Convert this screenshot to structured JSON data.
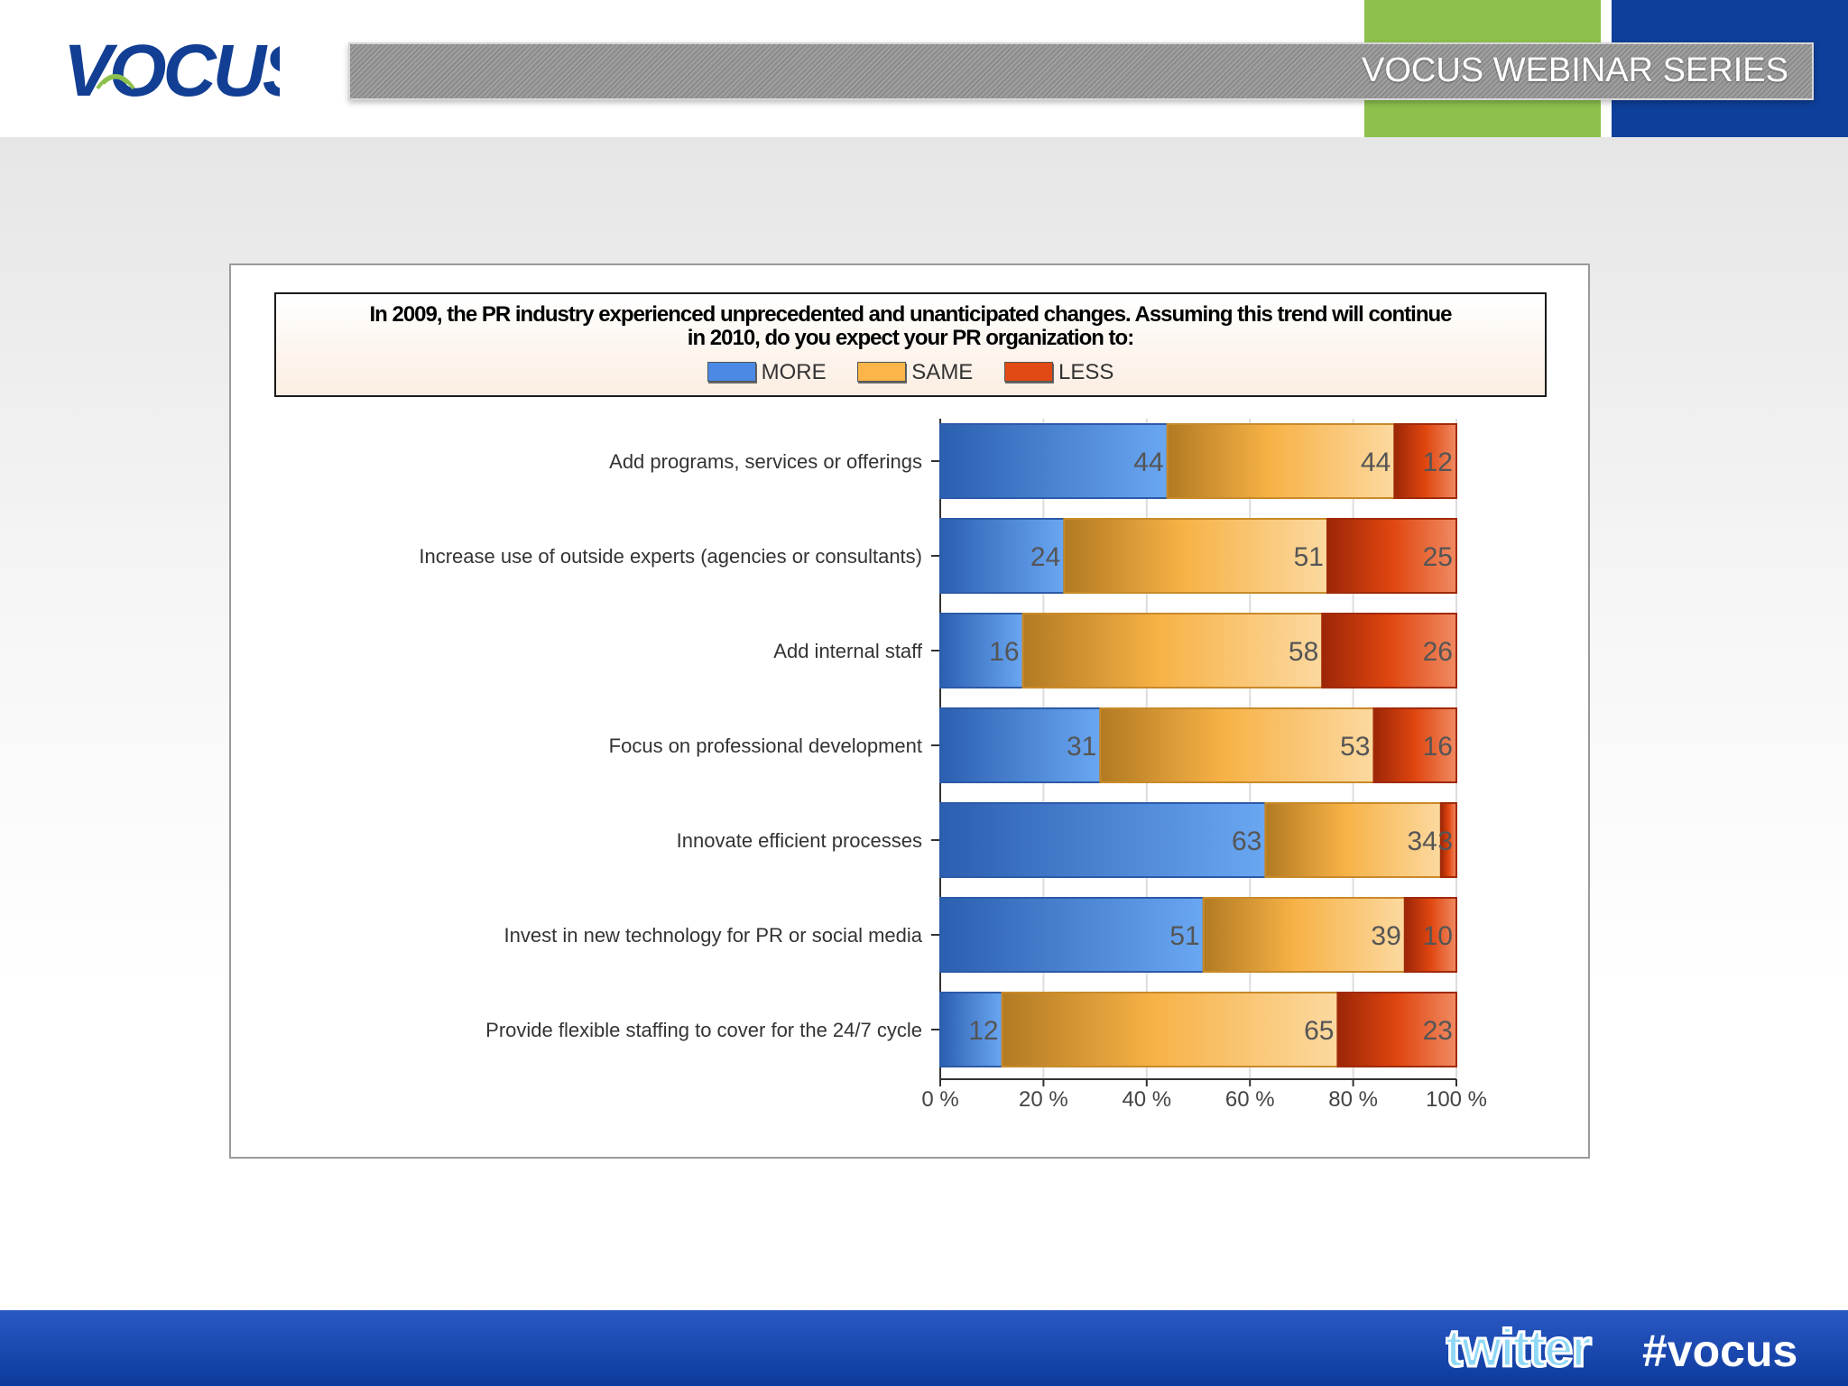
{
  "header": {
    "logo_text": "VOCUS",
    "series_title": "VOCUS WEBINAR SERIES"
  },
  "footer": {
    "twitter_word": "twitter",
    "hashtag": "#vocus"
  },
  "colors": {
    "more": "#4a8ae6",
    "same": "#fbb548",
    "less": "#e14a14",
    "brand_blue": "#123f93",
    "brand_green": "#8dc04d"
  },
  "chart_data": {
    "type": "bar",
    "orientation": "horizontal",
    "stacked": true,
    "title": "In 2009, the PR industry experienced unprecedented and unanticipated changes. Assuming this trend will continue in 2010, do you expect your PR organization to:",
    "title_line1": "In 2009, the PR industry experienced unprecedented and unanticipated changes. Assuming this trend will continue",
    "title_line2": "in 2010, do you expect your PR organization to:",
    "categories": [
      "Add programs, services or offerings",
      "Increase use of outside experts (agencies or consultants)",
      "Add internal staff",
      "Focus on professional development",
      "Innovate efficient processes",
      "Invest in new technology for PR or social media",
      "Provide flexible staffing to cover for the 24/7 cycle"
    ],
    "series": [
      {
        "name": "MORE",
        "values": [
          44,
          24,
          16,
          31,
          63,
          51,
          12
        ]
      },
      {
        "name": "SAME",
        "values": [
          44,
          51,
          58,
          53,
          34,
          39,
          65
        ]
      },
      {
        "name": "LESS",
        "values": [
          12,
          25,
          26,
          16,
          3,
          10,
          23
        ]
      }
    ],
    "xlim": [
      0,
      100
    ],
    "x_ticks": [
      "0 %",
      "20 %",
      "40 %",
      "60 %",
      "80 %",
      "100 %"
    ],
    "grid": true,
    "legend_position": "top"
  }
}
